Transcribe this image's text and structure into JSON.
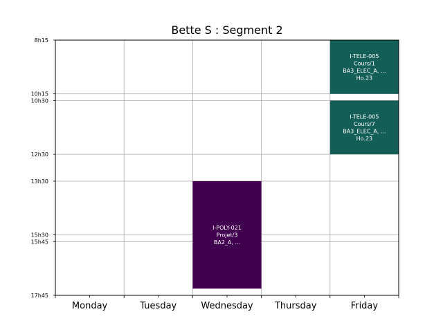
{
  "chart_data": {
    "type": "timetable",
    "title": "Bette S : Segment 2",
    "days": [
      "Monday",
      "Tuesday",
      "Wednesday",
      "Thursday",
      "Friday"
    ],
    "time_range": [
      "8h15",
      "17h45"
    ],
    "y_ticks": [
      {
        "label": "8h15",
        "minutes": 495
      },
      {
        "label": "10h15",
        "minutes": 615
      },
      {
        "label": "10h30",
        "minutes": 630
      },
      {
        "label": "12h30",
        "minutes": 750
      },
      {
        "label": "13h30",
        "minutes": 810
      },
      {
        "label": "15h30",
        "minutes": 930
      },
      {
        "label": "15h45",
        "minutes": 945
      },
      {
        "label": "17h45",
        "minutes": 1065
      }
    ],
    "events": [
      {
        "day": "Friday",
        "start": "8h15",
        "end": "10h15",
        "lines": [
          "I-TELE-005",
          "Cours/1",
          "BA3_ELEC_A, ...",
          "Ho.23"
        ],
        "color": "#145e58"
      },
      {
        "day": "Friday",
        "start": "10h30",
        "end": "12h30",
        "lines": [
          "I-TELE-005",
          "Cours/7",
          "BA3_ELEC_A, ...",
          "Ho.23"
        ],
        "color": "#145e58"
      },
      {
        "day": "Wednesday",
        "start": "13h30",
        "end": "17h30",
        "lines": [
          "I-POLY-021",
          "Projet/3",
          "BA2_A, ..."
        ],
        "color": "#40004f"
      }
    ]
  }
}
